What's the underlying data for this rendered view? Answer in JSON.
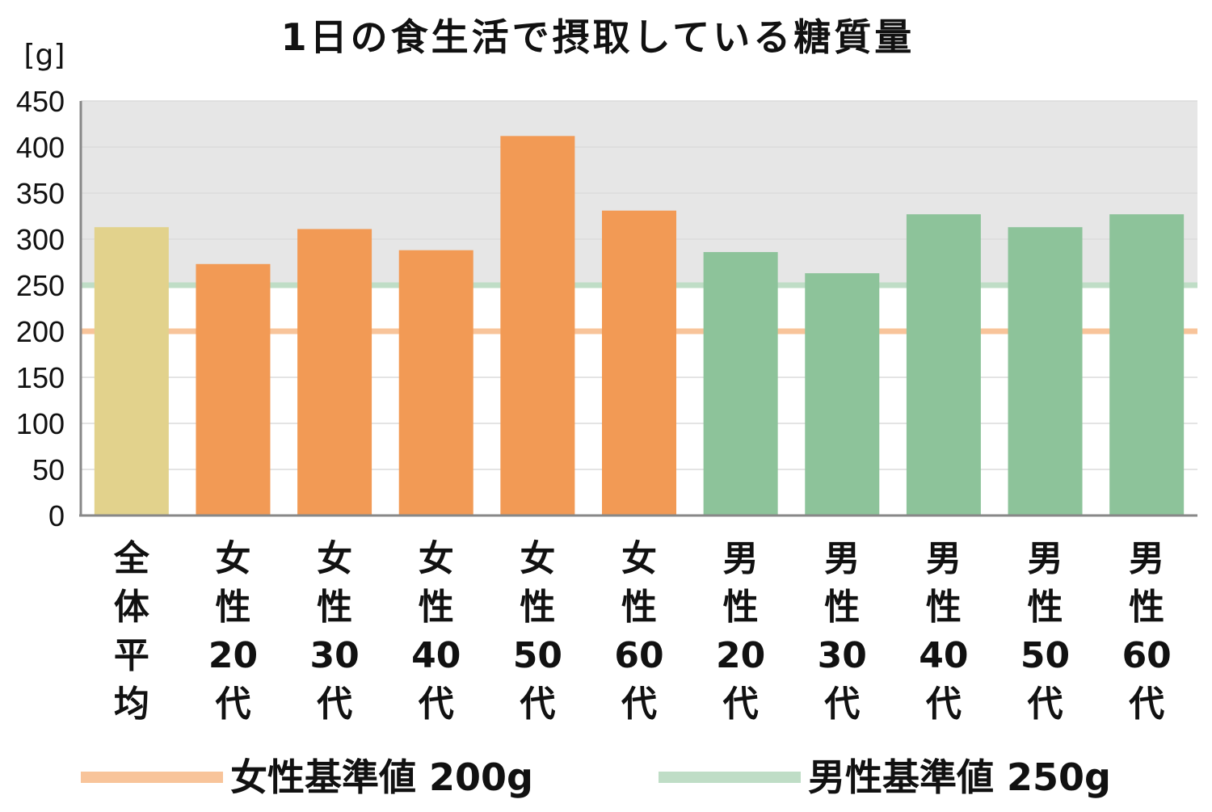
{
  "chart_data": {
    "type": "bar",
    "title": "1日の食生活で摂取している糖質量",
    "unit_label": "[g]",
    "ylim": [
      0,
      450
    ],
    "yticks": [
      "0",
      "50",
      "100",
      "150",
      "200",
      "250",
      "300",
      "350",
      "400",
      "450"
    ],
    "grid": true,
    "categories": [
      [
        "全",
        "体",
        "平",
        "均"
      ],
      [
        "女",
        "性",
        "20",
        "代"
      ],
      [
        "女",
        "性",
        "30",
        "代"
      ],
      [
        "女",
        "性",
        "40",
        "代"
      ],
      [
        "女",
        "性",
        "50",
        "代"
      ],
      [
        "女",
        "性",
        "60",
        "代"
      ],
      [
        "男",
        "性",
        "20",
        "代"
      ],
      [
        "男",
        "性",
        "30",
        "代"
      ],
      [
        "男",
        "性",
        "40",
        "代"
      ],
      [
        "男",
        "性",
        "50",
        "代"
      ],
      [
        "男",
        "性",
        "60",
        "代"
      ]
    ],
    "values": [
      313,
      273,
      311,
      288,
      412,
      331,
      286,
      263,
      327,
      313,
      327
    ],
    "bar_colors": [
      "#e2d28c",
      "#f29a55",
      "#f29a55",
      "#f29a55",
      "#f29a55",
      "#f29a55",
      "#8dc39a",
      "#8dc39a",
      "#8dc39a",
      "#8dc39a",
      "#8dc39a"
    ],
    "reference_lines": [
      {
        "label": "女性基準値 200g",
        "value": 200,
        "color": "#f8c49a"
      },
      {
        "label": "男性基準値 250g",
        "value": 250,
        "color": "#bfddc6"
      }
    ],
    "shaded_band": {
      "from": 250,
      "to": 450,
      "color": "#e6e6e6"
    },
    "legend_position": "bottom"
  }
}
